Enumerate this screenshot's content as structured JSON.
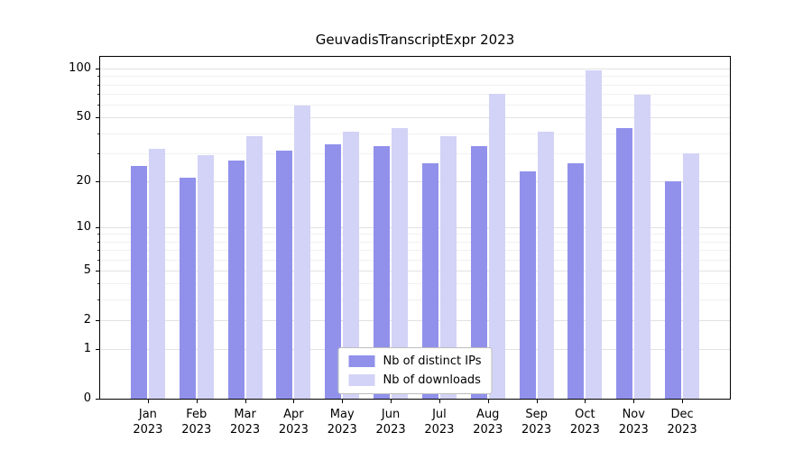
{
  "chart_data": {
    "type": "bar",
    "title": "GeuvadisTranscriptExpr 2023",
    "categories": [
      "Jan",
      "Feb",
      "Mar",
      "Apr",
      "May",
      "Jun",
      "Jul",
      "Aug",
      "Sep",
      "Oct",
      "Nov",
      "Dec"
    ],
    "x_tick_year": "2023",
    "series": [
      {
        "name": "Nb of distinct IPs",
        "color": "#9191ec",
        "values": [
          25,
          21,
          27,
          31,
          34,
          33,
          26,
          33,
          23,
          26,
          43,
          20
        ]
      },
      {
        "name": "Nb of downloads",
        "color": "#d3d3f7",
        "values": [
          32,
          29,
          38,
          59,
          41,
          43,
          38,
          70,
          41,
          98,
          69,
          30
        ]
      }
    ],
    "yscale": "symlog",
    "ylim": [
      0,
      118
    ],
    "yticks": [
      0,
      1,
      2,
      5,
      10,
      20,
      50,
      100
    ],
    "minor_yticks": [
      3,
      4,
      6,
      7,
      8,
      9,
      30,
      40,
      60,
      70,
      80,
      90
    ],
    "grid": true,
    "legend_position": "lower center"
  }
}
